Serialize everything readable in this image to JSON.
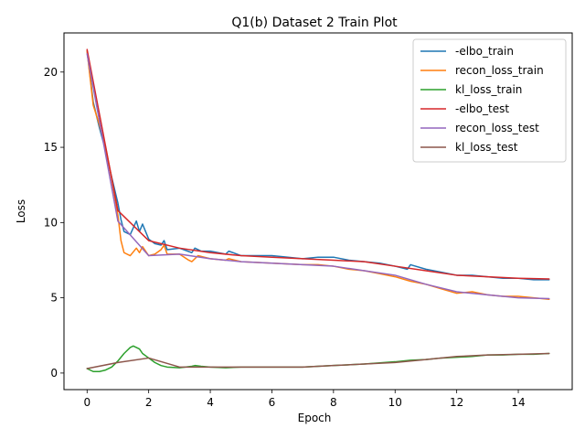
{
  "chart_data": {
    "type": "line",
    "title": "Q1(b) Dataset 2 Train Plot",
    "xlabel": "Epoch",
    "ylabel": "Loss",
    "xlim": [
      -0.75,
      15.75
    ],
    "ylim": [
      -1.1,
      22.6
    ],
    "xticks": [
      0,
      2,
      4,
      6,
      8,
      10,
      12,
      14
    ],
    "yticks": [
      0,
      5,
      10,
      15,
      20
    ],
    "grid": false,
    "legend_position": "top-right",
    "series": [
      {
        "name": "-elbo_train",
        "color": "#1f77b4",
        "x": [
          0,
          0.2,
          0.4,
          0.6,
          0.8,
          1.0,
          1.1,
          1.2,
          1.4,
          1.6,
          1.7,
          1.8,
          2.0,
          2.2,
          2.4,
          2.5,
          2.6,
          3.0,
          3.4,
          3.5,
          3.7,
          4.0,
          4.5,
          4.6,
          5.0,
          6.0,
          7.0,
          7.5,
          8.0,
          8.5,
          9.0,
          9.5,
          10.0,
          10.4,
          10.5,
          11.0,
          11.5,
          12.0,
          12.5,
          13.0,
          13.5,
          14.0,
          14.5,
          15.0
        ],
        "y": [
          21.4,
          18.0,
          16.3,
          14.8,
          13.0,
          11.3,
          10.2,
          9.4,
          9.2,
          10.1,
          9.4,
          9.9,
          8.9,
          8.6,
          8.5,
          8.8,
          8.2,
          8.3,
          8.0,
          8.3,
          8.1,
          8.1,
          7.9,
          8.1,
          7.8,
          7.8,
          7.6,
          7.7,
          7.7,
          7.5,
          7.4,
          7.3,
          7.1,
          6.9,
          7.2,
          6.9,
          6.7,
          6.5,
          6.5,
          6.4,
          6.3,
          6.3,
          6.2,
          6.2
        ]
      },
      {
        "name": "recon_loss_train",
        "color": "#ff7f0e",
        "x": [
          0,
          0.2,
          0.4,
          0.6,
          0.8,
          1.0,
          1.1,
          1.2,
          1.4,
          1.6,
          1.7,
          1.8,
          2.0,
          2.2,
          2.4,
          2.5,
          2.6,
          3.0,
          3.3,
          3.4,
          3.6,
          4.0,
          4.5,
          4.6,
          5.0,
          6.0,
          7.0,
          7.5,
          8.0,
          8.5,
          9.0,
          9.5,
          10.0,
          10.5,
          11.0,
          11.5,
          12.0,
          12.5,
          13.0,
          13.5,
          14.0,
          14.5,
          15.0
        ],
        "y": [
          21.4,
          17.8,
          16.5,
          15.0,
          12.9,
          10.5,
          8.8,
          8.0,
          7.8,
          8.3,
          8.0,
          8.4,
          7.8,
          7.9,
          8.2,
          8.5,
          7.9,
          7.9,
          7.5,
          7.4,
          7.8,
          7.6,
          7.5,
          7.6,
          7.4,
          7.3,
          7.2,
          7.2,
          7.1,
          6.9,
          6.8,
          6.6,
          6.4,
          6.1,
          5.9,
          5.6,
          5.3,
          5.4,
          5.2,
          5.1,
          5.1,
          5.0,
          4.9
        ]
      },
      {
        "name": "kl_loss_train",
        "color": "#2ca02c",
        "x": [
          0,
          0.2,
          0.4,
          0.6,
          0.8,
          1.0,
          1.2,
          1.4,
          1.5,
          1.6,
          1.7,
          1.8,
          2.0,
          2.2,
          2.4,
          2.6,
          3.0,
          3.4,
          3.5,
          3.7,
          4.0,
          4.5,
          5.0,
          6.0,
          7.0,
          8.0,
          9.0,
          10.0,
          10.5,
          11.0,
          11.5,
          12.0,
          12.5,
          13.0,
          13.5,
          14.0,
          14.5,
          15.0
        ],
        "y": [
          0.3,
          0.1,
          0.1,
          0.2,
          0.4,
          0.8,
          1.3,
          1.7,
          1.8,
          1.7,
          1.6,
          1.3,
          1.0,
          0.7,
          0.5,
          0.4,
          0.35,
          0.45,
          0.5,
          0.45,
          0.4,
          0.35,
          0.4,
          0.4,
          0.4,
          0.5,
          0.6,
          0.75,
          0.85,
          0.9,
          1.0,
          1.05,
          1.1,
          1.2,
          1.2,
          1.25,
          1.25,
          1.3
        ]
      },
      {
        "name": "-elbo_test",
        "color": "#d62728",
        "x": [
          0,
          1,
          2,
          3,
          4,
          5,
          6,
          7,
          8,
          9,
          10,
          11,
          12,
          13,
          14,
          15
        ],
        "y": [
          21.5,
          10.8,
          8.8,
          8.3,
          8.0,
          7.8,
          7.7,
          7.6,
          7.5,
          7.4,
          7.1,
          6.8,
          6.5,
          6.4,
          6.3,
          6.25
        ]
      },
      {
        "name": "recon_loss_test",
        "color": "#9467bd",
        "x": [
          0,
          1,
          2,
          3,
          4,
          5,
          6,
          7,
          8,
          9,
          10,
          11,
          12,
          13,
          14,
          15
        ],
        "y": [
          21.2,
          10.1,
          7.8,
          7.9,
          7.6,
          7.4,
          7.3,
          7.2,
          7.1,
          6.8,
          6.5,
          5.9,
          5.4,
          5.2,
          5.0,
          4.95
        ]
      },
      {
        "name": "kl_loss_test",
        "color": "#8c564b",
        "x": [
          0,
          1,
          2,
          3,
          4,
          5,
          6,
          7,
          8,
          9,
          10,
          11,
          12,
          13,
          14,
          15
        ],
        "y": [
          0.3,
          0.7,
          1.0,
          0.4,
          0.4,
          0.4,
          0.4,
          0.4,
          0.5,
          0.6,
          0.7,
          0.9,
          1.1,
          1.2,
          1.25,
          1.3
        ]
      }
    ]
  }
}
